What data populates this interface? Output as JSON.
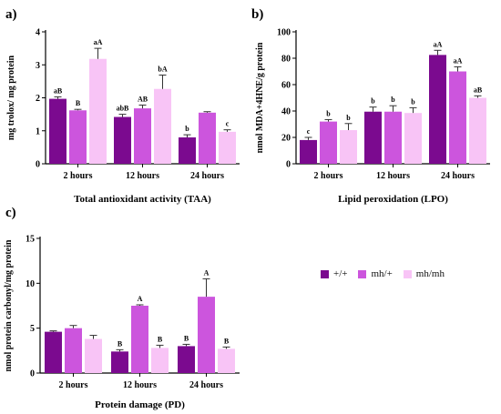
{
  "colors": {
    "wt": "#7b0a8f",
    "het": "#cc55dd",
    "hom": "#f8c4f6",
    "axis": "#000000"
  },
  "legend": [
    {
      "name": "+/+",
      "color": "#7b0a8f"
    },
    {
      "name": "mh/+",
      "color": "#cc55dd"
    },
    {
      "name": "mh/mh",
      "color": "#f8c4f6"
    }
  ],
  "chart_data": [
    {
      "panel": "a)",
      "type": "bar",
      "xlabel": "Total antioxidant activity (TAA)",
      "ylabel": "mg trolox/ mg protein",
      "categories": [
        "2 hours",
        "12 hours",
        "24 hours"
      ],
      "ylim": [
        0,
        4
      ],
      "yticks": [
        "0",
        "1",
        "2",
        "3",
        "4"
      ],
      "series": [
        {
          "name": "+/+",
          "values": [
            1.97,
            1.42,
            0.8
          ],
          "errors": [
            0.06,
            0.08,
            0.08
          ],
          "labels": [
            "aB",
            "abB",
            "b"
          ]
        },
        {
          "name": "mh/+",
          "values": [
            1.62,
            1.68,
            1.55
          ],
          "errors": [
            0.03,
            0.1,
            0.03
          ],
          "labels": [
            "B",
            "AB",
            ""
          ]
        },
        {
          "name": "mh/mh",
          "values": [
            3.18,
            2.27,
            0.97
          ],
          "errors": [
            0.32,
            0.42,
            0.06
          ],
          "labels": [
            "aA",
            "bA",
            "c"
          ]
        }
      ]
    },
    {
      "panel": "b)",
      "type": "bar",
      "xlabel": "Lipid peroxidation (LPO)",
      "ylabel": "nmol MDA+4HNE/g protein",
      "categories": [
        "2 hours",
        "12 hours",
        "24 hours"
      ],
      "ylim": [
        0,
        100
      ],
      "yticks": [
        "0",
        "20",
        "40",
        "60",
        "80",
        "100"
      ],
      "series": [
        {
          "name": "+/+",
          "values": [
            18,
            39.5,
            82.5
          ],
          "errors": [
            2,
            3.5,
            3.5
          ],
          "labels": [
            "c",
            "b",
            "aA"
          ]
        },
        {
          "name": "mh/+",
          "values": [
            32,
            39.5,
            70
          ],
          "errors": [
            1.5,
            4.5,
            3.5
          ],
          "labels": [
            "b",
            "b",
            "aA"
          ]
        },
        {
          "name": "mh/mh",
          "values": [
            25.5,
            38.5,
            50
          ],
          "errors": [
            5,
            4,
            1.5
          ],
          "labels": [
            "b",
            "b",
            "aB"
          ]
        }
      ]
    },
    {
      "panel": "c)",
      "type": "bar",
      "xlabel": "Protein damage (PD)",
      "ylabel": "nmol protein carbonyl/mg protein",
      "categories": [
        "2 hours",
        "12 hours",
        "24 hours"
      ],
      "ylim": [
        0,
        15
      ],
      "yticks": [
        "0",
        "5",
        "10",
        "15"
      ],
      "series": [
        {
          "name": "+/+",
          "values": [
            4.6,
            2.4,
            3.0
          ],
          "errors": [
            0.1,
            0.2,
            0.2
          ],
          "labels": [
            "",
            "B",
            "B"
          ]
        },
        {
          "name": "mh/+",
          "values": [
            5.0,
            7.5,
            8.5
          ],
          "errors": [
            0.3,
            0.1,
            2.0
          ],
          "labels": [
            "",
            "A",
            "A"
          ]
        },
        {
          "name": "mh/mh",
          "values": [
            3.8,
            2.8,
            2.7
          ],
          "errors": [
            0.4,
            0.3,
            0.2
          ],
          "labels": [
            "",
            "B",
            "B"
          ]
        }
      ]
    }
  ]
}
